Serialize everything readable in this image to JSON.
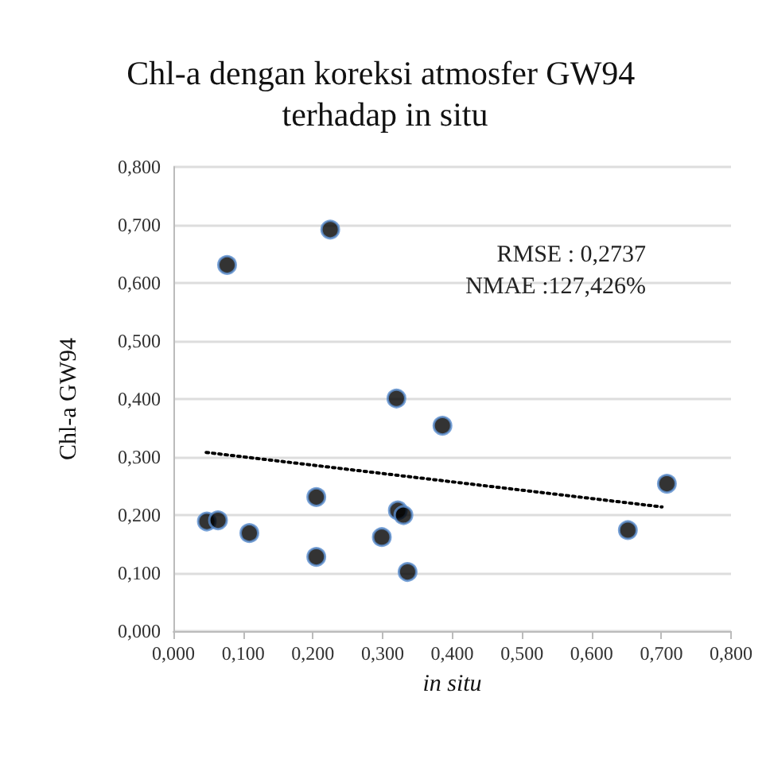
{
  "chart_data": {
    "type": "scatter",
    "title": "Chl-a dengan koreksi atmosfer GW94 terhadap in situ",
    "xlabel": "in situ",
    "ylabel": "Chl-a GW94",
    "annotations": [
      "RMSE : 0,2737",
      "NMAE :127,426%"
    ],
    "series": [
      {
        "color": "#000000",
        "x": [
          0.048,
          0.064,
          0.077,
          0.109,
          0.205,
          0.205,
          0.225,
          0.299,
          0.32,
          0.322,
          0.33,
          0.336,
          0.386,
          0.652,
          0.708
        ],
        "values": [
          0.189,
          0.191,
          0.631,
          0.169,
          0.231,
          0.128,
          0.692,
          0.162,
          0.401,
          0.208,
          0.2,
          0.102,
          0.354,
          0.174,
          0.254
        ]
      },
      {
        "type": "line",
        "color": "#000000",
        "line_style": "dotted",
        "marker": "none",
        "x": [
          0.047,
          0.701
        ],
        "values": [
          0.308,
          0.214
        ]
      }
    ],
    "xlim": [
      0,
      0.8
    ],
    "ylim": [
      0,
      0.8
    ],
    "xticks": [
      {
        "value": 0,
        "label": "0,000"
      },
      {
        "value": 0.1,
        "label": "0,100"
      },
      {
        "value": 0.2,
        "label": "0,200"
      },
      {
        "value": 0.3,
        "label": "0,300"
      },
      {
        "value": 0.4,
        "label": "0,400"
      },
      {
        "value": 0.5,
        "label": "0,500"
      },
      {
        "value": 0.6,
        "label": "0,600"
      },
      {
        "value": 0.7,
        "label": "0,700"
      },
      {
        "value": 0.8,
        "label": "0,800"
      }
    ],
    "yticks": [
      {
        "value": 0,
        "label": "0,000"
      },
      {
        "value": 0.1,
        "label": "0,100"
      },
      {
        "value": 0.2,
        "label": "0,200"
      },
      {
        "value": 0.3,
        "label": "0,300"
      },
      {
        "value": 0.4,
        "label": "0,400"
      },
      {
        "value": 0.5,
        "label": "0,500"
      },
      {
        "value": 0.6,
        "label": "0,600"
      },
      {
        "value": 0.7,
        "label": "0,700"
      },
      {
        "value": 0.8,
        "label": "0,800"
      }
    ],
    "grid": "y",
    "marker": "circle"
  }
}
